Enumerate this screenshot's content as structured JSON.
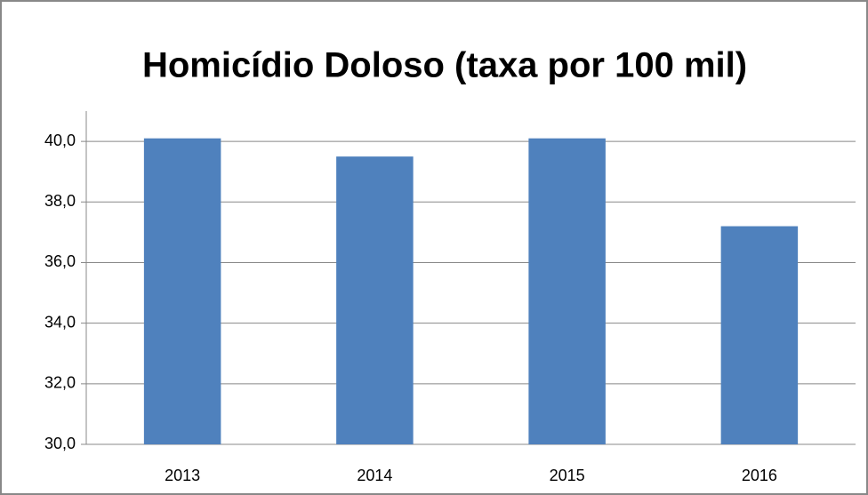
{
  "chart_data": {
    "type": "bar",
    "title": "Homicídio Doloso (taxa  por 100 mil)",
    "categories": [
      "2013",
      "2014",
      "2015",
      "2016"
    ],
    "values": [
      40.1,
      39.5,
      40.1,
      37.2
    ],
    "color": "#4f81bd",
    "ylim": [
      30,
      41
    ],
    "yticks": [
      {
        "value": 30,
        "label": "30,0"
      },
      {
        "value": 32,
        "label": "32,0"
      },
      {
        "value": 34,
        "label": "34,0"
      },
      {
        "value": 36,
        "label": "36,0"
      },
      {
        "value": 38,
        "label": "38,0"
      },
      {
        "value": 40,
        "label": "40,0"
      }
    ],
    "grid": true
  }
}
